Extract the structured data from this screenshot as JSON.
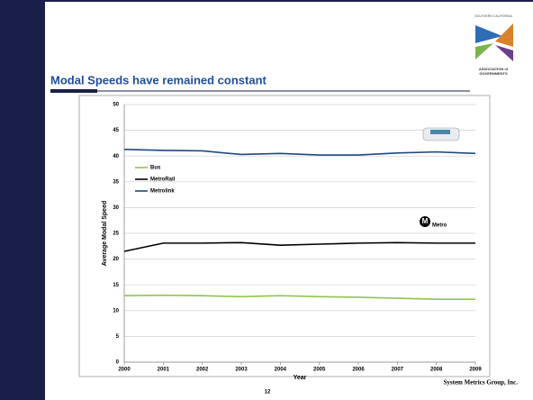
{
  "slide": {
    "title": "Modal Speeds have remained constant",
    "logo_top": "SOUTHERN CALIFORNIA",
    "logo_bottom_1": "ASSOCIATION of",
    "logo_bottom_2": "GOVERNMENTS",
    "page_number": "12",
    "footer": "System Metrics Group, Inc.",
    "metro_logo_letter": "M",
    "metro_logo_text": "Metro"
  },
  "chart_data": {
    "type": "line",
    "x_label": "Year",
    "y_label": "Average Modal Speed",
    "x": [
      2000,
      2001,
      2002,
      2003,
      2004,
      2005,
      2006,
      2007,
      2008,
      2009
    ],
    "xlim": [
      2000,
      2009
    ],
    "xticks": [
      2000,
      2001,
      2002,
      2003,
      2004,
      2005,
      2006,
      2007,
      2008,
      2009
    ],
    "ylim": [
      0,
      50
    ],
    "yticks": [
      0,
      5,
      10,
      15,
      20,
      25,
      30,
      35,
      40,
      45,
      50
    ],
    "grid": true,
    "legend": "left",
    "series": [
      {
        "name": "Bus",
        "color": "#92c353",
        "values": [
          12.9,
          13.0,
          12.9,
          12.7,
          12.9,
          12.7,
          12.6,
          12.4,
          12.2,
          12.2
        ]
      },
      {
        "name": "MetroRail",
        "color": "#000000",
        "values": [
          21.5,
          23.1,
          23.1,
          23.2,
          22.7,
          22.9,
          23.1,
          23.2,
          23.1,
          23.1
        ]
      },
      {
        "name": "Metrolink",
        "color": "#1f497d",
        "values": [
          41.3,
          41.1,
          41.0,
          40.3,
          40.5,
          40.2,
          40.2,
          40.6,
          40.8,
          40.5
        ]
      }
    ]
  }
}
